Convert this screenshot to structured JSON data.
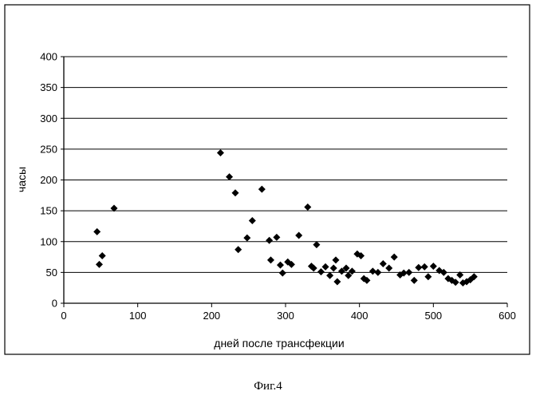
{
  "chart_data": {
    "type": "scatter",
    "title": "",
    "xlabel": "дней после трансфекции",
    "ylabel": "часы",
    "xlim": [
      0,
      600
    ],
    "ylim": [
      0,
      400
    ],
    "x_ticks": [
      "0",
      "100",
      "200",
      "300",
      "400",
      "500",
      "600"
    ],
    "y_ticks": [
      "0",
      "50",
      "100",
      "150",
      "200",
      "250",
      "300",
      "350",
      "400"
    ],
    "grid": "horizontal",
    "legend": "none",
    "marker": "diamond",
    "marker_color": "#000000",
    "series": [
      {
        "points": [
          [
            45,
            116
          ],
          [
            48,
            63
          ],
          [
            52,
            77
          ],
          [
            68,
            154
          ],
          [
            212,
            244
          ],
          [
            224,
            205
          ],
          [
            232,
            179
          ],
          [
            236,
            87
          ],
          [
            248,
            106
          ],
          [
            255,
            134
          ],
          [
            268,
            185
          ],
          [
            278,
            102
          ],
          [
            280,
            70
          ],
          [
            288,
            107
          ],
          [
            293,
            62
          ],
          [
            296,
            49
          ],
          [
            303,
            67
          ],
          [
            308,
            63
          ],
          [
            318,
            110
          ],
          [
            330,
            156
          ],
          [
            335,
            60
          ],
          [
            338,
            57
          ],
          [
            342,
            95
          ],
          [
            348,
            51
          ],
          [
            354,
            59
          ],
          [
            360,
            45
          ],
          [
            365,
            57
          ],
          [
            368,
            70
          ],
          [
            370,
            35
          ],
          [
            376,
            52
          ],
          [
            382,
            57
          ],
          [
            385,
            45
          ],
          [
            390,
            52
          ],
          [
            397,
            80
          ],
          [
            402,
            77
          ],
          [
            406,
            40
          ],
          [
            410,
            37
          ],
          [
            418,
            52
          ],
          [
            425,
            50
          ],
          [
            432,
            64
          ],
          [
            440,
            57
          ],
          [
            447,
            75
          ],
          [
            455,
            46
          ],
          [
            460,
            49
          ],
          [
            467,
            50
          ],
          [
            474,
            37
          ],
          [
            480,
            58
          ],
          [
            488,
            59
          ],
          [
            493,
            43
          ],
          [
            500,
            60
          ],
          [
            508,
            53
          ],
          [
            514,
            50
          ],
          [
            520,
            40
          ],
          [
            525,
            37
          ],
          [
            530,
            34
          ],
          [
            536,
            46
          ],
          [
            540,
            33
          ],
          [
            545,
            35
          ],
          [
            550,
            38
          ],
          [
            555,
            43
          ]
        ]
      }
    ],
    "caption": "Фиг.4"
  }
}
